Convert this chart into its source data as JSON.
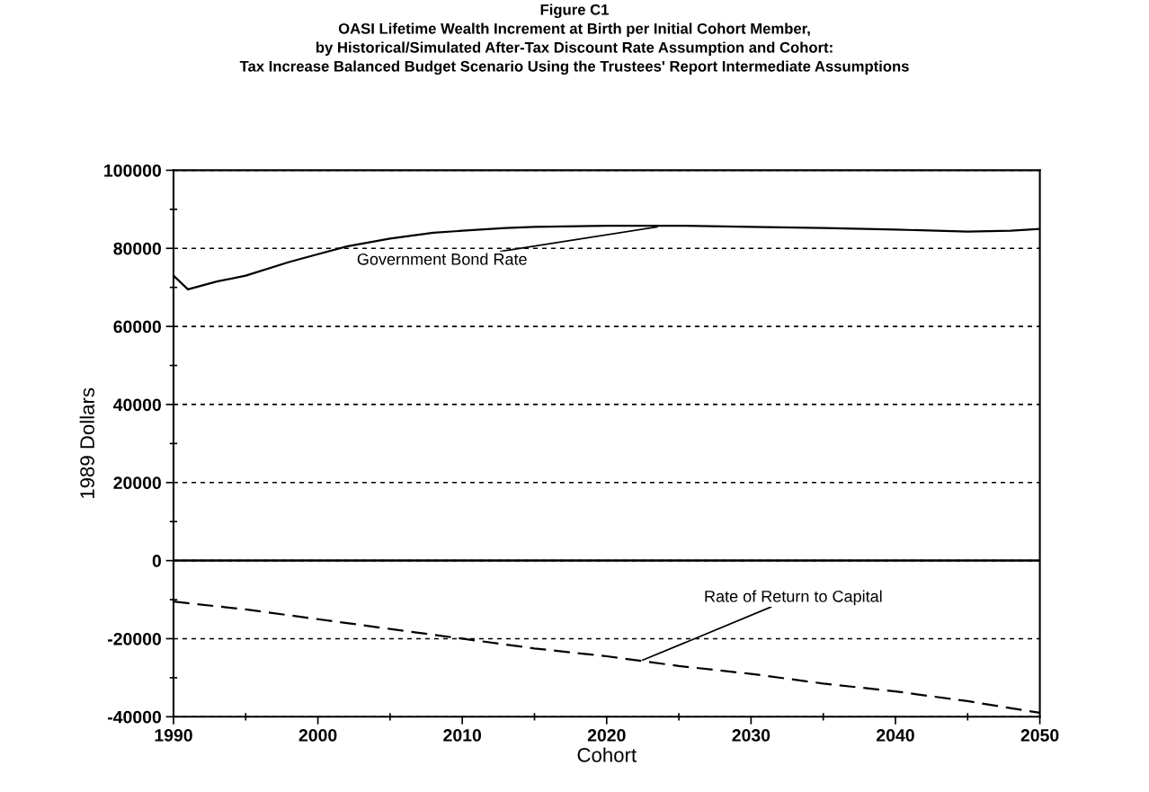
{
  "chart_data": {
    "type": "line",
    "title": "Figure C1\nOASI Lifetime Wealth Increment at Birth per Initial Cohort Member,\nby Historical/Simulated After-Tax Discount Rate Assumption and Cohort:\nTax Increase Balanced Budget Scenario Using the Trustees' Report Intermediate Assumptions",
    "xlabel": "Cohort",
    "ylabel": "1989 Dollars",
    "series": [
      {
        "color": "#000000",
        "line_style": "solid",
        "x": [
          1990,
          1991,
          1993,
          1995,
          1998,
          2000,
          2002,
          2005,
          2008,
          2010,
          2013,
          2015,
          2020,
          2025,
          2030,
          2035,
          2040,
          2045,
          2048,
          2050
        ],
        "values": [
          73000,
          69500,
          71500,
          73000,
          76500,
          78500,
          80500,
          82500,
          84000,
          84500,
          85200,
          85500,
          85800,
          85800,
          85500,
          85200,
          84800,
          84300,
          84500,
          85000
        ]
      },
      {
        "color": "#000000",
        "line_style": "dashed",
        "x": [
          1990,
          1995,
          2000,
          2005,
          2010,
          2015,
          2020,
          2025,
          2030,
          2035,
          2040,
          2045,
          2050
        ],
        "values": [
          -10500,
          -12500,
          -15000,
          -17500,
          -20000,
          -22500,
          -24500,
          -27000,
          -29000,
          -31500,
          -33500,
          -36000,
          -39000
        ]
      }
    ],
    "annotations": [
      {
        "text": "Government Bond Rate",
        "x": 2023.5,
        "y": 85500
      },
      {
        "text": "Rate of Return to Capital",
        "x": 2022.5,
        "y": -25500
      }
    ],
    "ref_lines": [
      {
        "axis": "y",
        "value": 0,
        "label": null,
        "color": "#000000",
        "line_style": "solid"
      }
    ],
    "xlim": [
      1990,
      2050
    ],
    "xticks": [
      1990,
      2000,
      2010,
      2020,
      2030,
      2040,
      2050
    ],
    "ylim": [
      -40000,
      100000
    ],
    "yticks": [
      -40000,
      -20000,
      0,
      20000,
      40000,
      60000,
      80000,
      100000
    ],
    "grid": "y",
    "marker": "none",
    "legend": false
  }
}
